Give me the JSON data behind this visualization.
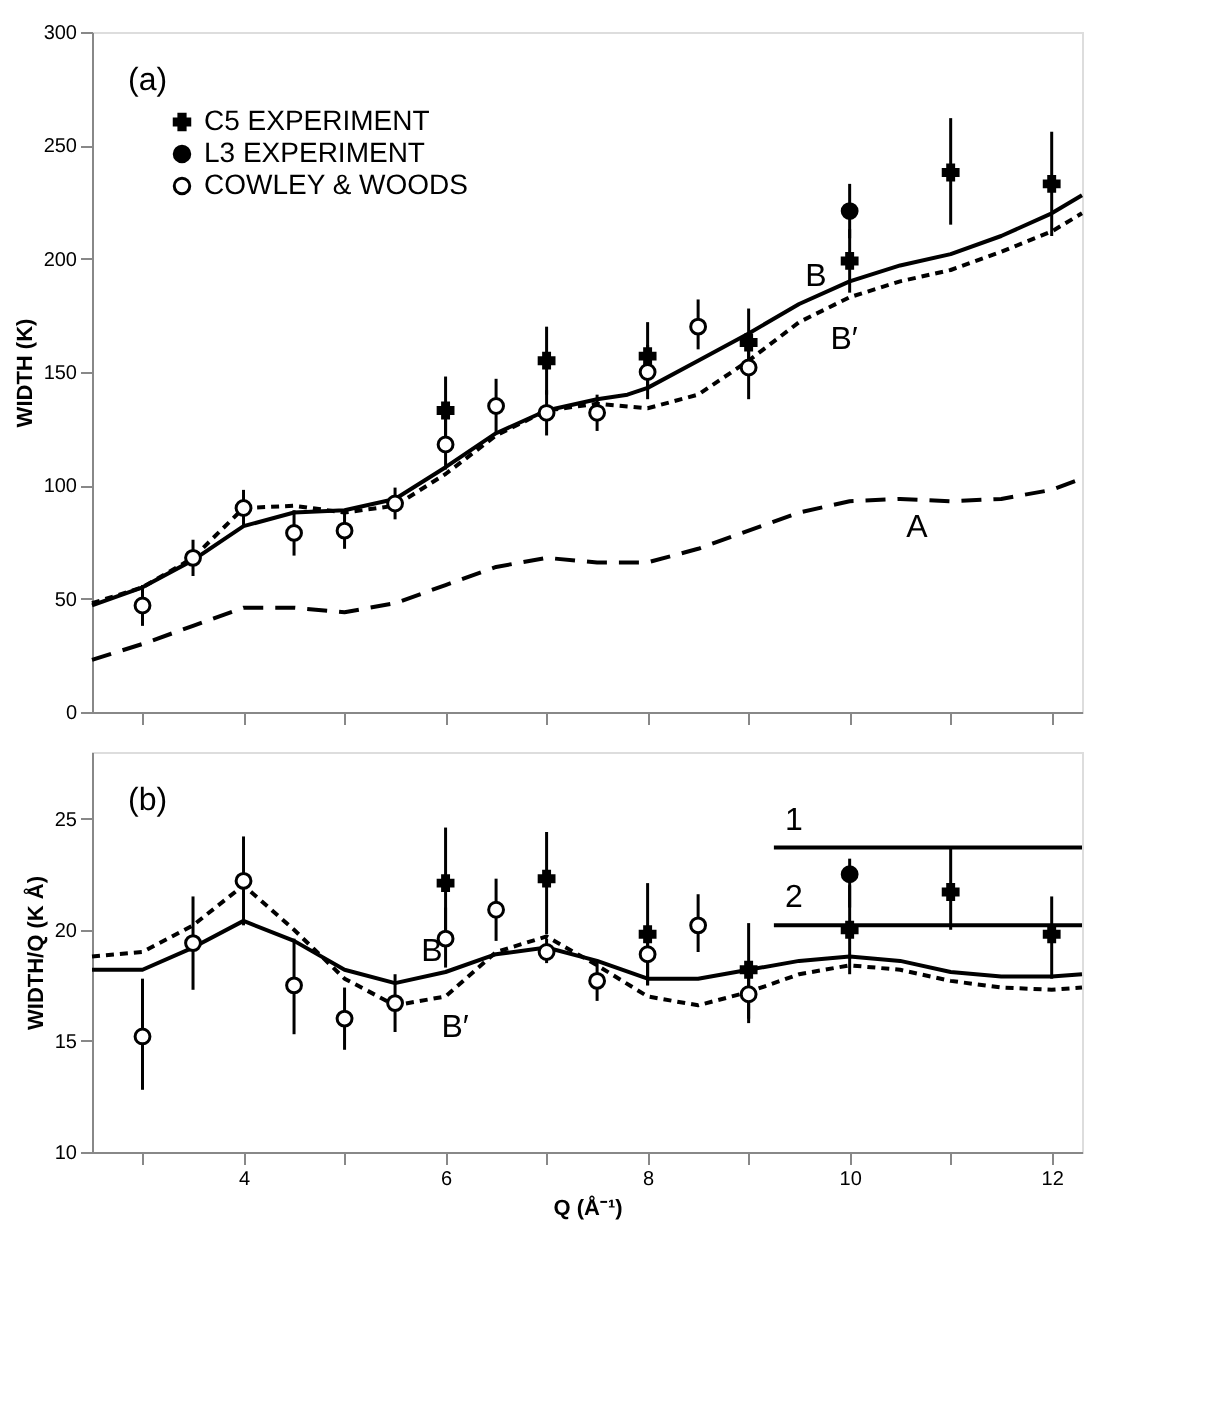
{
  "chart_data": [
    {
      "type": "line",
      "ylabel": "WIDTH (K)",
      "xlim": [
        2.5,
        12.3
      ],
      "ylim": [
        0,
        300
      ],
      "xticks": [
        {
          "value": 3,
          "label": null
        },
        {
          "value": 4,
          "label": null
        },
        {
          "value": 5,
          "label": null
        },
        {
          "value": 6,
          "label": null
        },
        {
          "value": 7,
          "label": null
        },
        {
          "value": 8,
          "label": null
        },
        {
          "value": 9,
          "label": null
        },
        {
          "value": 10,
          "label": null
        },
        {
          "value": 11,
          "label": null
        },
        {
          "value": 12,
          "label": null
        }
      ],
      "yticks": [
        0,
        50,
        100,
        150,
        200,
        250,
        300
      ],
      "tick_labels": "y",
      "grid": false,
      "legend": "top left",
      "series": [
        {
          "type": "line",
          "line_style": "solid",
          "color": "#000000",
          "x": [
            2.5,
            3,
            3.5,
            4,
            4.5,
            5,
            5.5,
            6,
            6.5,
            7,
            7.5,
            7.8,
            8,
            8.5,
            9,
            9.5,
            10,
            10.5,
            11,
            11.5,
            12,
            12.3
          ],
          "values": [
            47,
            55,
            67,
            82,
            88,
            89,
            94,
            108,
            123,
            133,
            138,
            140,
            143,
            155,
            167,
            180,
            190,
            197,
            202,
            210,
            220,
            228
          ]
        },
        {
          "type": "line",
          "line_style": "dotted",
          "color": "#000000",
          "x": [
            2.5,
            3,
            3.5,
            4,
            4.5,
            5,
            5.5,
            6,
            6.5,
            7,
            7.5,
            8,
            8.5,
            9,
            9.5,
            10,
            10.5,
            11,
            11.5,
            12,
            12.3
          ],
          "values": [
            48,
            55,
            68,
            90,
            91,
            88,
            91,
            105,
            122,
            133,
            136,
            134,
            140,
            155,
            172,
            183,
            190,
            195,
            203,
            212,
            220
          ]
        },
        {
          "type": "line",
          "line_style": "dashed",
          "color": "#000000",
          "x": [
            2.5,
            3,
            3.5,
            4,
            4.5,
            5,
            5.5,
            6,
            6.5,
            7,
            7.5,
            8,
            8.5,
            9,
            9.5,
            10,
            10.5,
            11,
            11.5,
            12,
            12.3
          ],
          "values": [
            23,
            30,
            38,
            46,
            46,
            44,
            48,
            56,
            64,
            68,
            66,
            66,
            72,
            80,
            88,
            93,
            94,
            93,
            94,
            98,
            103
          ]
        },
        {
          "type": "scatter",
          "name": "C5 EXPERIMENT",
          "marker": "cross",
          "color": "#000000",
          "x": [
            6,
            7,
            8,
            9,
            10,
            11,
            12
          ],
          "values": [
            133,
            155,
            157,
            163,
            199,
            238,
            233
          ],
          "errors": [
            [
              118,
              148
            ],
            [
              140,
              170
            ],
            [
              142,
              172
            ],
            [
              150,
              178
            ],
            [
              185,
              213
            ],
            [
              215,
              262
            ],
            [
              210,
              256
            ]
          ]
        },
        {
          "type": "scatter",
          "name": "L3 EXPERIMENT",
          "marker": "circle",
          "color": "#000000",
          "x": [
            10
          ],
          "values": [
            221
          ],
          "errors": [
            [
              209,
              233
            ]
          ]
        },
        {
          "type": "scatter",
          "name": "COWLEY & WOODS",
          "marker": "circle",
          "color": "#ffffff",
          "x": [
            3,
            3.5,
            4,
            4.5,
            5,
            5.5,
            6,
            6.5,
            7,
            7.5,
            8,
            8.5,
            9
          ],
          "values": [
            47,
            68,
            90,
            79,
            80,
            92,
            118,
            135,
            132,
            132,
            150,
            170,
            152
          ],
          "errors": [
            [
              38,
              56
            ],
            [
              60,
              76
            ],
            [
              82,
              98
            ],
            [
              69,
              89
            ],
            [
              72,
              88
            ],
            [
              85,
              99
            ],
            [
              107,
              129
            ],
            [
              123,
              147
            ],
            [
              122,
              142
            ],
            [
              124,
              140
            ],
            [
              138,
              162
            ],
            [
              160,
              182
            ],
            [
              138,
              166
            ]
          ]
        }
      ],
      "annotations": [
        "(a)",
        {
          "text": "B",
          "x": 9.5,
          "y": 180
        },
        {
          "text": "B′",
          "x": 9.75,
          "y": 177
        },
        {
          "text": "A",
          "x": 10.5,
          "y": 94
        }
      ]
    },
    {
      "type": "line",
      "xlabel": "Q (Å⁻¹)",
      "ylabel": "WIDTH/Q (K Å)",
      "xlim": [
        2.5,
        12.3
      ],
      "ylim": [
        10,
        28
      ],
      "xticks": [
        {
          "value": 3,
          "label": null
        },
        4,
        {
          "value": 5,
          "label": null
        },
        6,
        {
          "value": 7,
          "label": null
        },
        8,
        {
          "value": 9,
          "label": null
        },
        10,
        {
          "value": 11,
          "label": null
        },
        12
      ],
      "yticks": [
        10,
        15,
        20,
        25
      ],
      "grid": false,
      "series": [
        {
          "type": "line",
          "line_style": "solid",
          "color": "#000000",
          "x": [
            2.5,
            3,
            3.5,
            4,
            4.5,
            5,
            5.5,
            6,
            6.5,
            7,
            7.5,
            8,
            8.5,
            9,
            9.5,
            10,
            10.5,
            11,
            11.5,
            12,
            12.3
          ],
          "values": [
            18.2,
            18.2,
            19.2,
            20.4,
            19.5,
            18.2,
            17.6,
            18.1,
            18.9,
            19.2,
            18.6,
            17.8,
            17.8,
            18.2,
            18.6,
            18.8,
            18.6,
            18.1,
            17.9,
            17.9,
            18.0
          ]
        },
        {
          "type": "line",
          "line_style": "dotted",
          "color": "#000000",
          "x": [
            2.5,
            3,
            3.5,
            4,
            4.5,
            5,
            5.5,
            6,
            6.5,
            7,
            7.5,
            8,
            8.5,
            9,
            9.5,
            10,
            10.5,
            11,
            11.5,
            12,
            12.3
          ],
          "values": [
            18.8,
            19.0,
            20.2,
            22.0,
            20.0,
            17.8,
            16.6,
            17.0,
            19.0,
            19.7,
            18.4,
            17.0,
            16.6,
            17.2,
            18.0,
            18.4,
            18.2,
            17.7,
            17.4,
            17.3,
            17.4
          ]
        },
        {
          "type": "line",
          "line_style": "solid",
          "color": "#000000",
          "x": [
            9.25,
            12.3
          ],
          "values": [
            23.7,
            23.7
          ]
        },
        {
          "type": "line",
          "line_style": "solid",
          "color": "#000000",
          "x": [
            9.25,
            12.3
          ],
          "values": [
            20.2,
            20.2
          ]
        },
        {
          "type": "scatter",
          "marker": "cross",
          "color": "#000000",
          "x": [
            6,
            7,
            8,
            9,
            10,
            11,
            12
          ],
          "values": [
            22.1,
            22.3,
            19.8,
            18.2,
            20.0,
            21.7,
            19.8
          ],
          "errors": [
            [
              19.6,
              24.6
            ],
            [
              19.8,
              24.4
            ],
            [
              17.5,
              22.1
            ],
            [
              16.0,
              20.3
            ],
            [
              18.0,
              22.0
            ],
            [
              20.0,
              23.7
            ],
            [
              17.8,
              21.5
            ]
          ]
        },
        {
          "type": "scatter",
          "marker": "circle",
          "color": "#000000",
          "x": [
            10
          ],
          "values": [
            22.5
          ],
          "errors": [
            [
              21.0,
              23.2
            ]
          ]
        },
        {
          "type": "scatter",
          "marker": "circle",
          "color": "#ffffff",
          "x": [
            3,
            3.5,
            4,
            4.5,
            5,
            5.5,
            6,
            6.5,
            7,
            7.5,
            8,
            8.5,
            9
          ],
          "values": [
            15.2,
            19.4,
            22.2,
            17.5,
            16.0,
            16.7,
            19.6,
            20.9,
            19.0,
            17.7,
            18.9,
            20.2,
            17.1
          ],
          "errors": [
            [
              12.8,
              17.8
            ],
            [
              17.3,
              21.5
            ],
            [
              20.2,
              24.2
            ],
            [
              15.3,
              19.6
            ],
            [
              14.6,
              17.4
            ],
            [
              15.4,
              18.0
            ],
            [
              18.3,
              21.0
            ],
            [
              19.5,
              22.3
            ],
            [
              18.5,
              19.6
            ],
            [
              16.8,
              18.6
            ],
            [
              17.5,
              20.2
            ],
            [
              19.0,
              21.6
            ],
            [
              15.8,
              18.4
            ]
          ]
        }
      ],
      "annotations": [
        "(b)",
        {
          "text": "1",
          "x": 9.3,
          "y": 23.7
        },
        {
          "text": "2",
          "x": 9.3,
          "y": 20.2
        },
        {
          "text": "B",
          "x": 5.7,
          "y": 17.8
        },
        {
          "text": "B′",
          "x": 5.9,
          "y": 16.9
        }
      ]
    }
  ]
}
